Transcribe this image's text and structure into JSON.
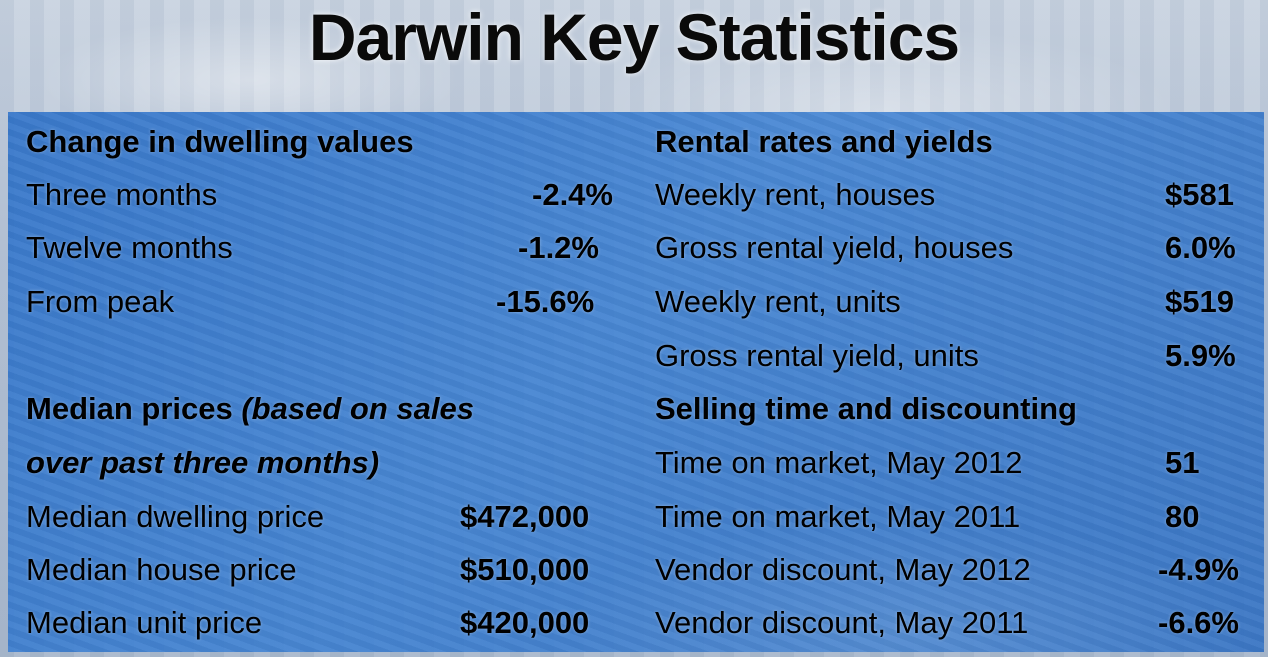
{
  "title": "Darwin Key Statistics",
  "left": {
    "dwelling": {
      "heading": "Change in dwelling values",
      "rows": [
        {
          "label": "Three months",
          "value": "-2.4%"
        },
        {
          "label": "Twelve months",
          "value": "-1.2%"
        },
        {
          "label": "From peak",
          "value": "-15.6%"
        }
      ]
    },
    "median": {
      "heading_bold": "Median prices ",
      "heading_italic_1": "(based on sales",
      "heading_italic_2": "over past three months)",
      "rows": [
        {
          "label": "Median dwelling price",
          "value": "$472,000"
        },
        {
          "label": "Median house price",
          "value": "$510,000"
        },
        {
          "label": "Median unit price",
          "value": "$420,000"
        }
      ]
    }
  },
  "right": {
    "rental": {
      "heading": "Rental rates and yields",
      "rows": [
        {
          "label": "Weekly rent, houses",
          "value": "$581"
        },
        {
          "label": "Gross rental yield, houses",
          "value": "6.0%"
        },
        {
          "label": "Weekly rent, units",
          "value": "$519"
        },
        {
          "label": "Gross rental yield, units",
          "value": "5.9%"
        }
      ]
    },
    "selling": {
      "heading": "Selling time and discounting",
      "rows": [
        {
          "label": "Time on market, May 2012",
          "value": "51"
        },
        {
          "label": "Time on market, May 2011",
          "value": "80"
        },
        {
          "label": "Vendor discount, May 2012",
          "value": "-4.9%"
        },
        {
          "label": "Vendor discount, May 2011",
          "value": "-6.6%"
        }
      ]
    }
  },
  "colors": {
    "panel": "#2f78cf",
    "text": "#000000"
  }
}
